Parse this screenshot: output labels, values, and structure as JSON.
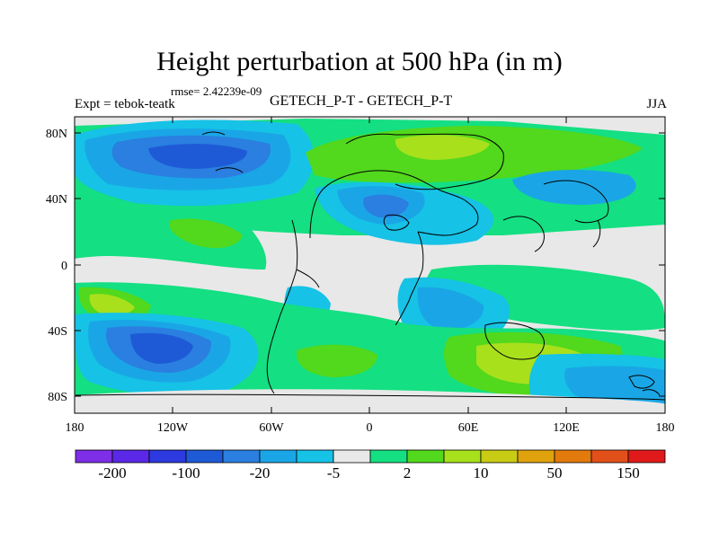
{
  "header": {
    "title": "Height perturbation at 500 hPa (in m)",
    "rmse": "rmse= 2.42239e-09",
    "expt": "Expt = tebok-teatk",
    "center": "GETECH_P-T - GETECH_P-T",
    "season": "JJA"
  },
  "chart_data": {
    "type": "heatmap",
    "title": "Height perturbation at 500 hPa (in m)",
    "x_ticks": [
      "180",
      "120W",
      "60W",
      "0",
      "60E",
      "120E",
      "180"
    ],
    "y_ticks": [
      "80N",
      "40N",
      "0",
      "40S",
      "80S"
    ],
    "xlim": [
      -180,
      180
    ],
    "ylim": [
      -90,
      90
    ],
    "colorbar": {
      "colors": [
        "#7d2ee6",
        "#5a28e6",
        "#2d3ae0",
        "#1e5ad6",
        "#2a7fe0",
        "#1aa6e6",
        "#16c2e6",
        "#e8e8e8",
        "#14df82",
        "#52d81c",
        "#a8e01c",
        "#c8cc14",
        "#e0a20c",
        "#e27a0c",
        "#e2501a",
        "#e01a1a"
      ],
      "labels": [
        "-200",
        "-100",
        "-20",
        "-5",
        "2",
        "10",
        "50",
        "150"
      ]
    },
    "regions": [
      {
        "level": "-100",
        "center": [
          -125,
          70
        ],
        "radius": [
          28,
          10
        ]
      },
      {
        "level": "-100",
        "center": [
          -150,
          -53
        ],
        "radius": [
          16,
          10
        ]
      },
      {
        "level": "-20",
        "center": [
          10,
          40
        ],
        "radius": [
          10,
          9
        ]
      },
      {
        "level": "10",
        "center": [
          45,
          55
        ],
        "radius": [
          20,
          12
        ]
      },
      {
        "level": "10",
        "center": [
          -20,
          -62
        ],
        "radius": [
          15,
          8
        ]
      },
      {
        "level": "10",
        "center": [
          95,
          -65
        ],
        "radius": [
          22,
          12
        ]
      },
      {
        "level": "10",
        "center": [
          -160,
          -28
        ],
        "radius": [
          18,
          10
        ]
      }
    ]
  }
}
